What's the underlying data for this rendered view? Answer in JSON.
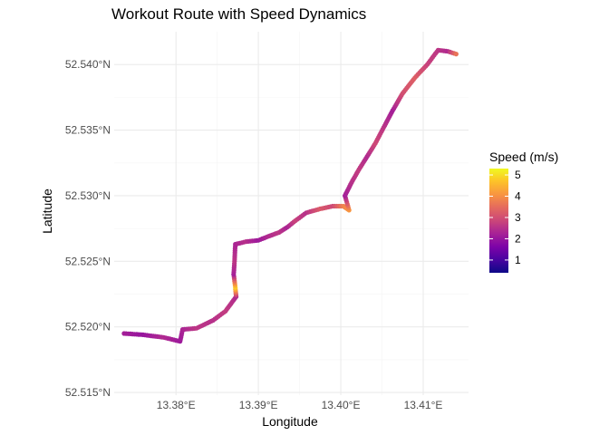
{
  "chart_data": {
    "type": "scatter",
    "title": "Workout Route with Speed Dynamics",
    "xlabel": "Longitude",
    "ylabel": "Latitude",
    "xlim": [
      13.3725,
      13.4155
    ],
    "ylim": [
      52.5148,
      52.5425
    ],
    "x_ticks": [
      {
        "value": 13.38,
        "label": "13.38°E"
      },
      {
        "value": 13.39,
        "label": "13.39°E"
      },
      {
        "value": 13.4,
        "label": "13.40°E"
      },
      {
        "value": 13.41,
        "label": "13.41°E"
      }
    ],
    "y_ticks": [
      {
        "value": 52.515,
        "label": "52.515°N"
      },
      {
        "value": 52.52,
        "label": "52.520°N"
      },
      {
        "value": 52.525,
        "label": "52.525°N"
      },
      {
        "value": 52.53,
        "label": "52.530°N"
      },
      {
        "value": 52.535,
        "label": "52.535°N"
      },
      {
        "value": 52.54,
        "label": "52.540°N"
      }
    ],
    "grid": true,
    "color_scale": {
      "name": "Speed (m/s)",
      "palette": "plasma",
      "range": [
        0.4,
        5.3
      ],
      "ticks": [
        1,
        2,
        3,
        4,
        5
      ],
      "legend_position": "right"
    },
    "route": [
      {
        "lon": 13.3737,
        "lat": 52.5195,
        "speed": 2.2
      },
      {
        "lon": 13.376,
        "lat": 52.5194,
        "speed": 2.0
      },
      {
        "lon": 13.3785,
        "lat": 52.5192,
        "speed": 2.4
      },
      {
        "lon": 13.3805,
        "lat": 52.5189,
        "speed": 2.1
      },
      {
        "lon": 13.3808,
        "lat": 52.5198,
        "speed": 2.3
      },
      {
        "lon": 13.3825,
        "lat": 52.5199,
        "speed": 2.6
      },
      {
        "lon": 13.3845,
        "lat": 52.5205,
        "speed": 2.5
      },
      {
        "lon": 13.386,
        "lat": 52.5212,
        "speed": 2.7
      },
      {
        "lon": 13.3873,
        "lat": 52.5223,
        "speed": 2.4
      },
      {
        "lon": 13.3872,
        "lat": 52.523,
        "speed": 4.8
      },
      {
        "lon": 13.387,
        "lat": 52.524,
        "speed": 2.2
      },
      {
        "lon": 13.3871,
        "lat": 52.525,
        "speed": 2.6
      },
      {
        "lon": 13.3872,
        "lat": 52.5263,
        "speed": 2.3
      },
      {
        "lon": 13.3885,
        "lat": 52.5265,
        "speed": 2.5
      },
      {
        "lon": 13.39,
        "lat": 52.5266,
        "speed": 2.1
      },
      {
        "lon": 13.3912,
        "lat": 52.5269,
        "speed": 2.4
      },
      {
        "lon": 13.3925,
        "lat": 52.5272,
        "speed": 2.6
      },
      {
        "lon": 13.3935,
        "lat": 52.5276,
        "speed": 2.3
      },
      {
        "lon": 13.3945,
        "lat": 52.5281,
        "speed": 2.8
      },
      {
        "lon": 13.3958,
        "lat": 52.5287,
        "speed": 2.5
      },
      {
        "lon": 13.3975,
        "lat": 52.529,
        "speed": 3.2
      },
      {
        "lon": 13.399,
        "lat": 52.5292,
        "speed": 2.9
      },
      {
        "lon": 13.4003,
        "lat": 52.5292,
        "speed": 3.8
      },
      {
        "lon": 13.401,
        "lat": 52.5289,
        "speed": 4.1
      },
      {
        "lon": 13.4005,
        "lat": 52.53,
        "speed": 2.2
      },
      {
        "lon": 13.4013,
        "lat": 52.531,
        "speed": 2.5
      },
      {
        "lon": 13.4022,
        "lat": 52.532,
        "speed": 2.7
      },
      {
        "lon": 13.4032,
        "lat": 52.533,
        "speed": 2.4
      },
      {
        "lon": 13.4042,
        "lat": 52.534,
        "speed": 2.9
      },
      {
        "lon": 13.4052,
        "lat": 52.5352,
        "speed": 2.6
      },
      {
        "lon": 13.4063,
        "lat": 52.5365,
        "speed": 2.2
      },
      {
        "lon": 13.4075,
        "lat": 52.5378,
        "speed": 3.0
      },
      {
        "lon": 13.409,
        "lat": 52.539,
        "speed": 3.3
      },
      {
        "lon": 13.4105,
        "lat": 52.54,
        "speed": 2.8
      },
      {
        "lon": 13.4118,
        "lat": 52.5411,
        "speed": 2.6
      },
      {
        "lon": 13.413,
        "lat": 52.541,
        "speed": 2.4
      },
      {
        "lon": 13.414,
        "lat": 52.5408,
        "speed": 3.6
      }
    ]
  }
}
